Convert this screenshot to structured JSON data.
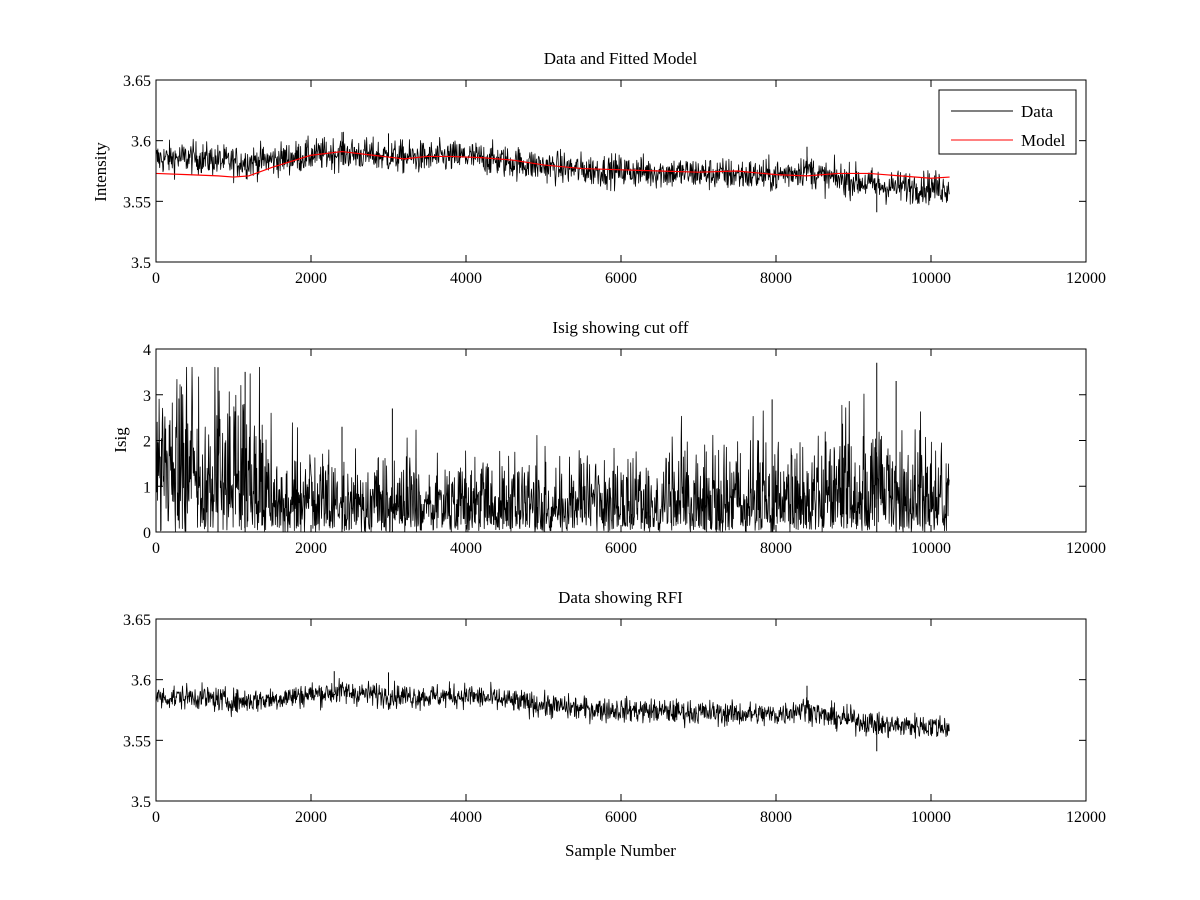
{
  "figure": {
    "background": "#ffffff"
  },
  "chart_data": [
    {
      "type": "line",
      "title": "Data and Fitted Model",
      "xlabel": "",
      "ylabel": "Intensity",
      "xlim": [
        0,
        12000
      ],
      "ylim": [
        3.5,
        3.65
      ],
      "xticks": [
        0,
        2000,
        4000,
        6000,
        8000,
        10000,
        12000
      ],
      "yticks": [
        3.5,
        3.55,
        3.6,
        3.65
      ],
      "ytick_labels": [
        "3.5",
        "3.55",
        "3.6",
        "3.65"
      ],
      "legend": {
        "position": "top-right",
        "entries": [
          "Data",
          "Model"
        ]
      },
      "series": [
        {
          "name": "Data",
          "color": "#000000",
          "n_samples": 10240,
          "kind": "noisy",
          "noise_halfwidth": 0.012,
          "trend_x": [
            0,
            500,
            1000,
            1500,
            2000,
            2400,
            3000,
            3500,
            4000,
            4500,
            5000,
            5500,
            6000,
            6500,
            7000,
            7500,
            8000,
            8400,
            8600,
            9000,
            9400,
            9800,
            10240
          ],
          "trend_y": [
            3.585,
            3.586,
            3.582,
            3.584,
            3.588,
            3.59,
            3.587,
            3.586,
            3.587,
            3.583,
            3.579,
            3.576,
            3.575,
            3.574,
            3.573,
            3.572,
            3.571,
            3.577,
            3.57,
            3.567,
            3.562,
            3.562,
            3.561
          ],
          "spikes": [
            {
              "x": 2400,
              "y": 3.607
            },
            {
              "x": 3000,
              "y": 3.606
            },
            {
              "x": 8400,
              "y": 3.595
            },
            {
              "x": 9300,
              "y": 3.541
            }
          ]
        },
        {
          "name": "Model",
          "color": "#ff0000",
          "kind": "smooth",
          "x": [
            0,
            400,
            800,
            1000,
            1200,
            1500,
            2000,
            2400,
            2800,
            3200,
            3500,
            3800,
            4200,
            4600,
            5000,
            5500,
            6000,
            6500,
            7000,
            7500,
            8000,
            8400,
            8800,
            9200,
            9600,
            10000,
            10240
          ],
          "y": [
            3.573,
            3.572,
            3.571,
            3.57,
            3.571,
            3.578,
            3.588,
            3.591,
            3.588,
            3.585,
            3.587,
            3.587,
            3.586,
            3.584,
            3.58,
            3.577,
            3.576,
            3.575,
            3.574,
            3.575,
            3.572,
            3.571,
            3.573,
            3.573,
            3.571,
            3.569,
            3.57
          ]
        }
      ]
    },
    {
      "type": "line",
      "title": "Isig showing cut off",
      "xlabel": "",
      "ylabel": "Isig",
      "xlim": [
        0,
        12000
      ],
      "ylim": [
        0,
        4
      ],
      "xticks": [
        0,
        2000,
        4000,
        6000,
        8000,
        10000,
        12000
      ],
      "yticks": [
        0,
        1,
        2,
        3,
        4
      ],
      "ytick_labels": [
        "0",
        "1",
        "2",
        "3",
        "4"
      ],
      "series": [
        {
          "name": "Isig",
          "color": "#000000",
          "n_samples": 10240,
          "kind": "isig",
          "env_x": [
            0,
            800,
            1500,
            1700,
            3000,
            5000,
            7000,
            8000,
            8700,
            9000,
            9300,
            10240
          ],
          "env_y": [
            1.6,
            1.6,
            1.1,
            0.8,
            0.78,
            0.76,
            0.8,
            0.85,
            0.9,
            1.05,
            1.1,
            1.05
          ],
          "spikes": [
            {
              "x": 800,
              "y": 3.6
            },
            {
              "x": 1150,
              "y": 3.5
            },
            {
              "x": 2400,
              "y": 2.3
            },
            {
              "x": 3050,
              "y": 2.7
            },
            {
              "x": 7950,
              "y": 2.9
            },
            {
              "x": 9300,
              "y": 3.7
            },
            {
              "x": 9550,
              "y": 3.3
            }
          ]
        }
      ]
    },
    {
      "type": "line",
      "title": "Data showing RFI",
      "xlabel": "Sample Number",
      "ylabel": "",
      "xlim": [
        0,
        12000
      ],
      "ylim": [
        3.5,
        3.65
      ],
      "xticks": [
        0,
        2000,
        4000,
        6000,
        8000,
        10000,
        12000
      ],
      "yticks": [
        3.5,
        3.55,
        3.6,
        3.65
      ],
      "ytick_labels": [
        "3.5",
        "3.55",
        "3.6",
        "3.65"
      ],
      "series": [
        {
          "name": "Data",
          "color": "#000000",
          "n_samples": 10240,
          "kind": "noisy",
          "noise_halfwidth": 0.009,
          "trend_x": [
            0,
            500,
            1000,
            1500,
            2000,
            2400,
            3000,
            3500,
            4000,
            4500,
            5000,
            5500,
            6000,
            6500,
            7000,
            7500,
            8000,
            8400,
            8600,
            9000,
            9400,
            9800,
            10240
          ],
          "trend_y": [
            3.585,
            3.586,
            3.582,
            3.584,
            3.588,
            3.59,
            3.587,
            3.586,
            3.587,
            3.583,
            3.579,
            3.576,
            3.575,
            3.574,
            3.573,
            3.572,
            3.571,
            3.577,
            3.57,
            3.567,
            3.562,
            3.562,
            3.561
          ],
          "spikes": [
            {
              "x": 2300,
              "y": 3.607
            },
            {
              "x": 3000,
              "y": 3.606
            },
            {
              "x": 8400,
              "y": 3.595
            },
            {
              "x": 9300,
              "y": 3.541
            }
          ]
        }
      ]
    }
  ]
}
